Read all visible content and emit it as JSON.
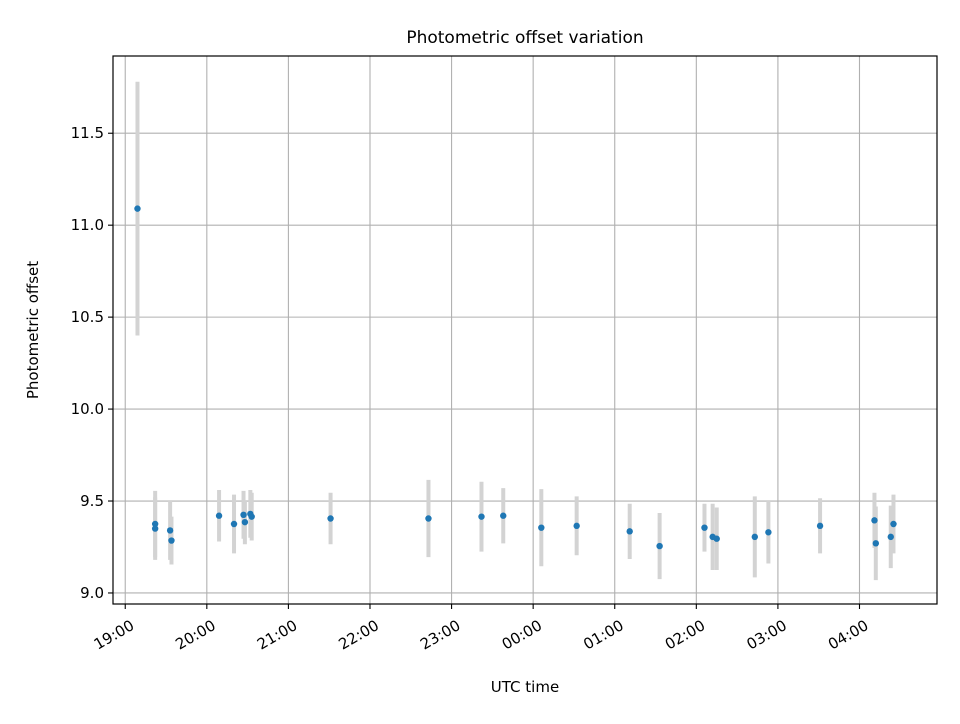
{
  "chart_data": {
    "type": "scatter",
    "title": "Photometric offset variation",
    "xlabel": "UTC time",
    "ylabel": "Photometric offset",
    "x_axis_kind": "time",
    "x_start_label": "19:00",
    "xlim_hours": [
      18.85,
      28.95
    ],
    "ylim": [
      8.94,
      11.92
    ],
    "x_ticks": [
      {
        "hour": 19,
        "label": "19:00"
      },
      {
        "hour": 20,
        "label": "20:00"
      },
      {
        "hour": 21,
        "label": "21:00"
      },
      {
        "hour": 22,
        "label": "22:00"
      },
      {
        "hour": 23,
        "label": "23:00"
      },
      {
        "hour": 24,
        "label": "00:00"
      },
      {
        "hour": 25,
        "label": "01:00"
      },
      {
        "hour": 26,
        "label": "02:00"
      },
      {
        "hour": 27,
        "label": "03:00"
      },
      {
        "hour": 28,
        "label": "04:00"
      }
    ],
    "y_ticks": [
      {
        "value": 9.0,
        "label": "9.0"
      },
      {
        "value": 9.5,
        "label": "9.5"
      },
      {
        "value": 10.0,
        "label": "10.0"
      },
      {
        "value": 10.5,
        "label": "10.5"
      },
      {
        "value": 11.0,
        "label": "11.0"
      },
      {
        "value": 11.5,
        "label": "11.5"
      }
    ],
    "grid": true,
    "marker_color": "#1f77b4",
    "errorbar_color": "#d3d3d3",
    "series": [
      {
        "points": [
          {
            "time": "19:09",
            "y": 11.09,
            "err": 0.69
          },
          {
            "time": "19:22",
            "y": 9.375,
            "err": 0.18
          },
          {
            "time": "19:22",
            "y": 9.35,
            "err": 0.17
          },
          {
            "time": "19:33",
            "y": 9.34,
            "err": 0.16
          },
          {
            "time": "19:34",
            "y": 9.285,
            "err": 0.13
          },
          {
            "time": "20:09",
            "y": 9.42,
            "err": 0.14
          },
          {
            "time": "20:20",
            "y": 9.375,
            "err": 0.16
          },
          {
            "time": "20:27",
            "y": 9.425,
            "err": 0.13
          },
          {
            "time": "20:28",
            "y": 9.385,
            "err": 0.12
          },
          {
            "time": "20:32",
            "y": 9.43,
            "err": 0.13
          },
          {
            "time": "20:33",
            "y": 9.415,
            "err": 0.13
          },
          {
            "time": "21:31",
            "y": 9.405,
            "err": 0.14
          },
          {
            "time": "22:43",
            "y": 9.405,
            "err": 0.21
          },
          {
            "time": "23:22",
            "y": 9.415,
            "err": 0.19
          },
          {
            "time": "23:38",
            "y": 9.42,
            "err": 0.15
          },
          {
            "time": "00:06",
            "y": 9.355,
            "err": 0.21
          },
          {
            "time": "00:32",
            "y": 9.365,
            "err": 0.16
          },
          {
            "time": "01:11",
            "y": 9.335,
            "err": 0.15
          },
          {
            "time": "01:33",
            "y": 9.255,
            "err": 0.18
          },
          {
            "time": "02:06",
            "y": 9.355,
            "err": 0.13
          },
          {
            "time": "02:12",
            "y": 9.305,
            "err": 0.18
          },
          {
            "time": "02:15",
            "y": 9.295,
            "err": 0.17
          },
          {
            "time": "02:43",
            "y": 9.305,
            "err": 0.22
          },
          {
            "time": "02:53",
            "y": 9.33,
            "err": 0.17
          },
          {
            "time": "03:31",
            "y": 9.365,
            "err": 0.15
          },
          {
            "time": "04:11",
            "y": 9.395,
            "err": 0.15
          },
          {
            "time": "04:12",
            "y": 9.27,
            "err": 0.2
          },
          {
            "time": "04:23",
            "y": 9.305,
            "err": 0.17
          },
          {
            "time": "04:25",
            "y": 9.375,
            "err": 0.16
          }
        ]
      }
    ]
  }
}
